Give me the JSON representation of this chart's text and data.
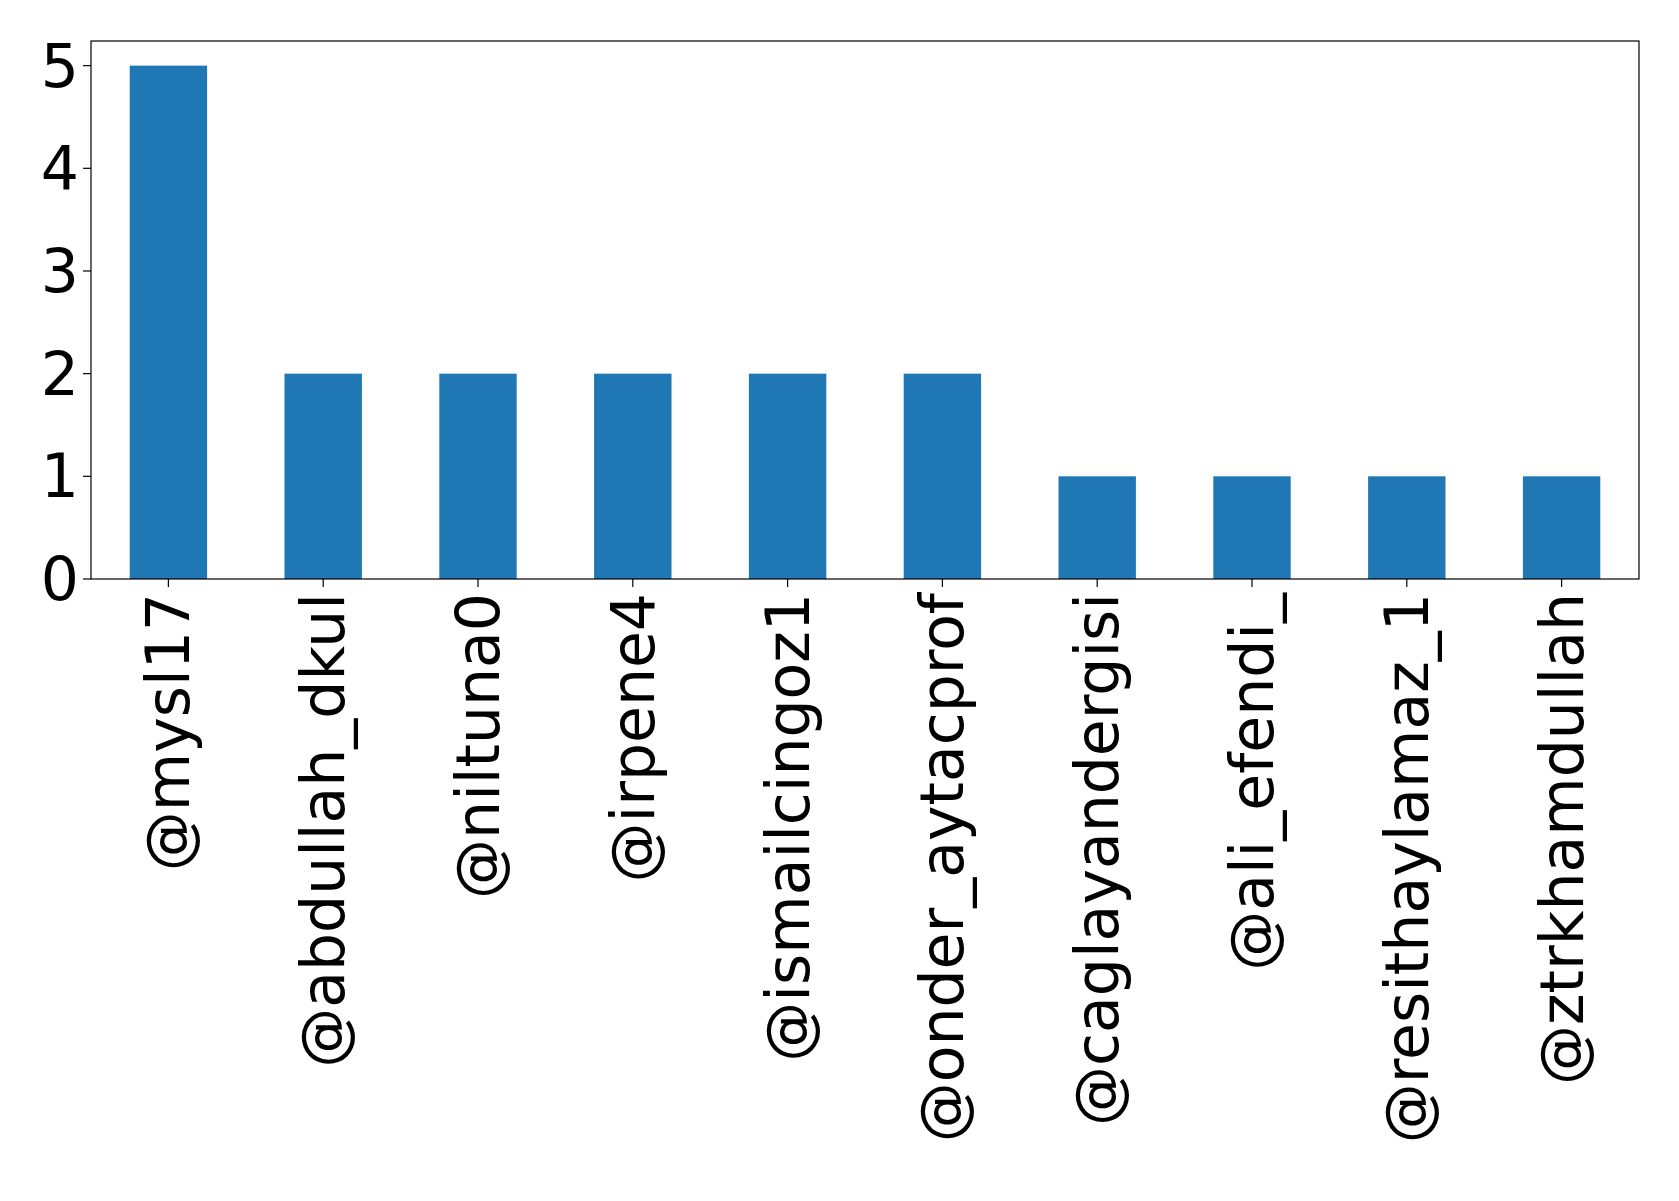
{
  "chart_data": {
    "type": "bar",
    "categories": [
      "@mysl17",
      "@abdullah_dkul",
      "@niltuna0",
      "@irpene4",
      "@ismailcingoz1",
      "@onder_aytacprof",
      "@caglayandergisi",
      "@ali_efendi_",
      "@resithaylamaz_1",
      "@ztrkhamdullah"
    ],
    "values": [
      5,
      2,
      2,
      2,
      2,
      2,
      1,
      1,
      1,
      1
    ],
    "color": "#1f77b4",
    "ylim": [
      0,
      5.24
    ],
    "yticks": [
      0,
      1,
      2,
      3,
      4,
      5
    ]
  }
}
